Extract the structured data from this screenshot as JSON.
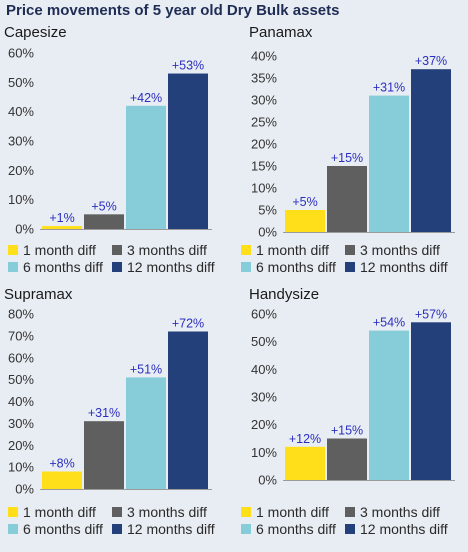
{
  "title": "Price movements of 5 year old Dry Bulk assets",
  "legend": [
    {
      "label": "1 month diff",
      "color": "#ffde1a"
    },
    {
      "label": "3 months diff",
      "color": "#5f5f5f"
    },
    {
      "label": "6 months diff",
      "color": "#86cdd9"
    },
    {
      "label": "12 months diff",
      "color": "#24407a"
    }
  ],
  "colors": {
    "label_text": "#2b2fbf",
    "background": "#e8edf3",
    "title_text": "#1f2d55"
  },
  "chart_data": [
    {
      "type": "bar",
      "title": "Capesize",
      "categories": [
        "1 month diff",
        "3 months diff",
        "6 months diff",
        "12 months diff"
      ],
      "values": [
        1,
        5,
        42,
        53
      ],
      "data_labels": [
        "+1%",
        "+5%",
        "+42%",
        "+53%"
      ],
      "ylim": [
        0,
        60
      ],
      "yticks": [
        "0%",
        "10%",
        "20%",
        "30%",
        "40%",
        "50%",
        "60%"
      ],
      "grid": false
    },
    {
      "type": "bar",
      "title": "Panamax",
      "categories": [
        "1 month diff",
        "3 months diff",
        "6 months diff",
        "12 months diff"
      ],
      "values": [
        5,
        15,
        31,
        37
      ],
      "data_labels": [
        "+5%",
        "+15%",
        "+31%",
        "+37%"
      ],
      "ylim": [
        0,
        40
      ],
      "yticks": [
        "0%",
        "5%",
        "10%",
        "15%",
        "20%",
        "25%",
        "30%",
        "35%",
        "40%"
      ],
      "grid": false
    },
    {
      "type": "bar",
      "title": "Supramax",
      "categories": [
        "1 month diff",
        "3 months diff",
        "6 months diff",
        "12 months diff"
      ],
      "values": [
        8,
        31,
        51,
        72
      ],
      "data_labels": [
        "+8%",
        "+31%",
        "+51%",
        "+72%"
      ],
      "ylim": [
        0,
        80
      ],
      "yticks": [
        "0%",
        "10%",
        "20%",
        "30%",
        "40%",
        "50%",
        "60%",
        "70%",
        "80%"
      ],
      "grid": false
    },
    {
      "type": "bar",
      "title": "Handysize",
      "categories": [
        "1 month diff",
        "3 months diff",
        "6 months diff",
        "12 months diff"
      ],
      "values": [
        12,
        15,
        54,
        57
      ],
      "data_labels": [
        "+12%",
        "+15%",
        "+54%",
        "+57%"
      ],
      "ylim": [
        0,
        60
      ],
      "yticks": [
        "0%",
        "10%",
        "20%",
        "30%",
        "40%",
        "50%",
        "60%"
      ],
      "grid": false
    }
  ]
}
